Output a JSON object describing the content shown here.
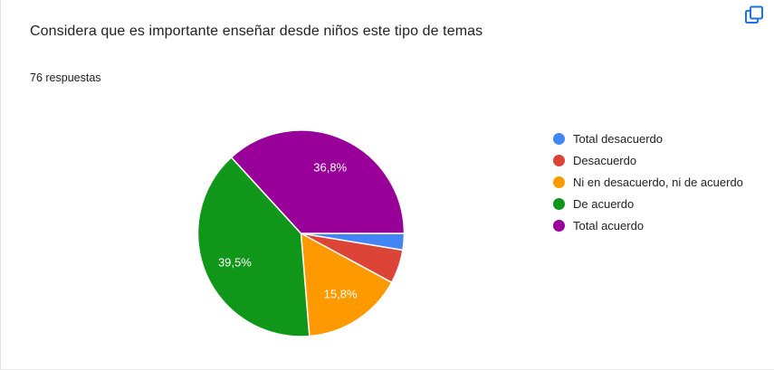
{
  "card": {
    "title": "Considera que es importante enseñar desde niños este tipo de temas",
    "responses": "76 respuestas"
  },
  "icons": {
    "copy_chart": "copy-chart-icon"
  },
  "colors": {
    "accent_blue": "#1a73e8",
    "text_dark": "#202124",
    "card_background": "#ffffff"
  },
  "chart_data": {
    "type": "pie",
    "title": "Considera que es importante enseñar desde niños este tipo de temas",
    "subtitle": "76 respuestas",
    "total_responses": 76,
    "categories": [
      "Total desacuerdo",
      "Desacuerdo",
      "Ni en desacuerdo, ni de acuerdo",
      "De acuerdo",
      "Total acuerdo"
    ],
    "values_percent": [
      2.6,
      5.3,
      15.8,
      39.5,
      36.8
    ],
    "slice_labels": [
      "",
      "",
      "15,8%",
      "39,5%",
      "36,8%"
    ],
    "colors": [
      "#4285F4",
      "#DB4437",
      "#FF9900",
      "#109618",
      "#990099"
    ],
    "start_angle_deg": 0,
    "direction": "clockwise",
    "legend_position": "right",
    "slice_border_color": "#ffffff"
  }
}
